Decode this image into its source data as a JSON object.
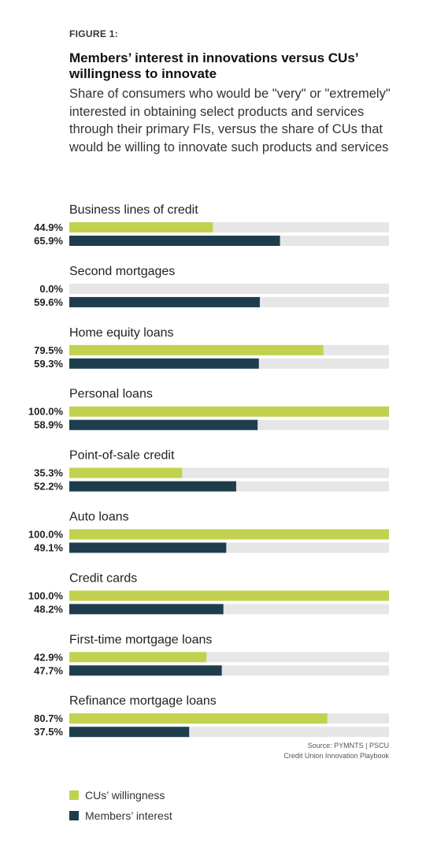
{
  "figure_label": "FIGURE 1:",
  "title": "Members’ interest in innovations versus CUs’ willingness to innovate",
  "subtitle": "Share of consumers who would be \"very\" or \"extremely\" interested in obtaining select products and services through their primary FIs, versus the share of CUs that would be willing to innovate such products and services",
  "source_line1": "Source: PYMNTS  |  PSCU",
  "source_line2": "Credit Union Innovation Playbook",
  "colors": {
    "willingness": "#c2d24f",
    "interest": "#1e3d4c",
    "track": "#e6e6e6"
  },
  "chart_data": {
    "type": "bar",
    "orientation": "horizontal",
    "xlim": [
      0,
      100
    ],
    "categories": [
      "Business lines of credit",
      "Second mortgages",
      "Home equity loans",
      "Personal loans",
      "Point-of-sale credit",
      "Auto loans",
      "Credit cards",
      "First-time mortgage loans",
      "Refinance mortgage loans"
    ],
    "series": [
      {
        "name": "CUs’ willingness",
        "values": [
          44.9,
          0.0,
          79.5,
          100.0,
          35.3,
          100.0,
          100.0,
          42.9,
          80.7
        ]
      },
      {
        "name": "Members’ interest",
        "values": [
          65.9,
          59.6,
          59.3,
          58.9,
          52.2,
          49.1,
          48.2,
          47.7,
          37.5
        ]
      }
    ],
    "legend": "bottom-left",
    "grid": false
  }
}
